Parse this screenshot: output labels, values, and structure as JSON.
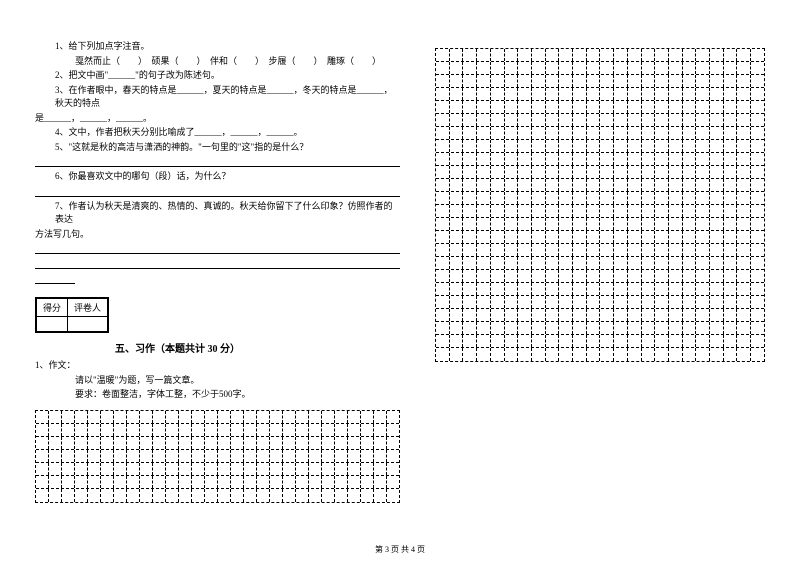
{
  "questions": {
    "q1": {
      "text": "1、给下列加点字注音。",
      "sub": "戛然而止（　　）　硕果（　　）　伴和（　　）　步履（　　）　雕琢（　　）"
    },
    "q2": "2、把文中画\"______\"的句子改为陈述句。",
    "q3": {
      "text": "3、在作者眼中，春天的特点是______，夏天的特点是______，冬天的特点是______，秋天的特点",
      "cont": "是______，______，______。"
    },
    "q4": "4、文中，作者把秋天分别比喻成了______，______，______。",
    "q5": "5、\"这就是秋的高洁与潇洒的神韵。\"一句里的\"这\"指的是什么？",
    "q6": "6、你最喜欢文中的哪句（段）话，为什么？",
    "q7": {
      "text": "7、作者认为秋天是清爽的、热情的、真诚的。秋天给你留下了什么印象？仿照作者的表达",
      "cont": "方法写几句。"
    }
  },
  "scorebox": {
    "score_label": "得分",
    "reviewer_label": "评卷人"
  },
  "section5": {
    "title": "五、习作（本题共计 30 分）",
    "q1": "1、作文：",
    "line1": "请以\"温暖\"为题，写一篇文章。",
    "line2": "要求：卷面整洁，字体工整，不少于500字。"
  },
  "footer": "第 3 页 共 4 页",
  "grid": {
    "bottom_rows": 7,
    "bottom_cols": 28,
    "right_rows": 24,
    "right_cols": 24
  },
  "styles": {
    "text_color": "#000000",
    "bg_color": "#ffffff",
    "border_color": "#000000"
  }
}
